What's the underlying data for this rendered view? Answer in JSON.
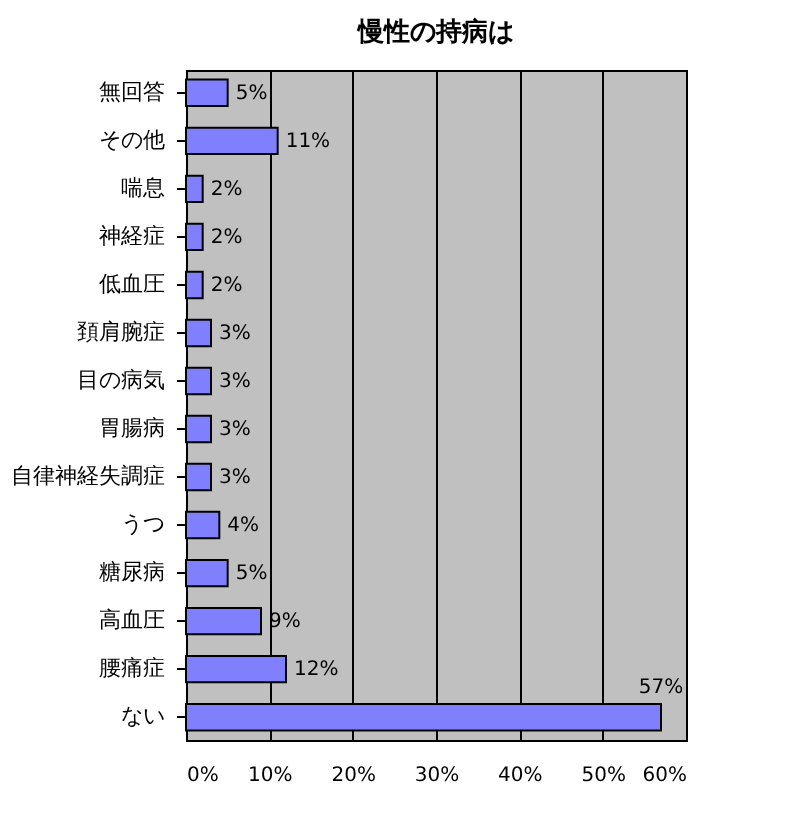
{
  "chart_data": {
    "type": "bar",
    "title": "慢性の持病は",
    "orientation": "horizontal",
    "categories": [
      "無回答",
      "その他",
      "喘息",
      "神経症",
      "低血圧",
      "頚肩腕症",
      "目の病気",
      "胃腸病",
      "自律神経失調症",
      "うつ",
      "糖尿病",
      "高血圧",
      "腰痛症",
      "ない"
    ],
    "values": [
      5,
      11,
      2,
      2,
      2,
      3,
      3,
      3,
      3,
      4,
      5,
      9,
      12,
      57
    ],
    "value_labels": [
      "5%",
      "11%",
      "2%",
      "2%",
      "2%",
      "3%",
      "3%",
      "3%",
      "3%",
      "4%",
      "5%",
      "9%",
      "12%",
      "57%"
    ],
    "color": "#8080ff",
    "xlim": [
      0,
      60
    ],
    "xticks": [
      {
        "value": 0,
        "label": "0%"
      },
      {
        "value": 10,
        "label": "10%"
      },
      {
        "value": 20,
        "label": "20%"
      },
      {
        "value": 30,
        "label": "30%"
      },
      {
        "value": 40,
        "label": "40%"
      },
      {
        "value": 50,
        "label": "50%"
      },
      {
        "value": 60,
        "label": "60%"
      }
    ],
    "grid": "x"
  }
}
